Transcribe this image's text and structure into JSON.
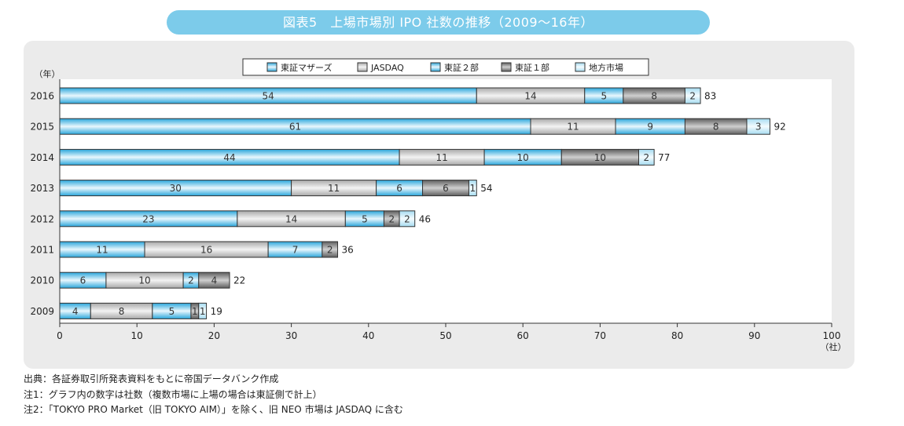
{
  "title": "図表5　上場市場別 IPO 社数の推移（2009～16年）",
  "chart_data": {
    "type": "bar",
    "orientation": "horizontal",
    "stacked": true,
    "y_unit_label": "（年）",
    "x_unit_label": "（社）",
    "categories": [
      "2016",
      "2015",
      "2014",
      "2013",
      "2012",
      "2011",
      "2010",
      "2009"
    ],
    "xlim": [
      0,
      100
    ],
    "xticks": [
      0,
      10,
      20,
      30,
      40,
      50,
      60,
      70,
      80,
      90,
      100
    ],
    "series": [
      {
        "name": "東証マザーズ",
        "values": [
          54,
          61,
          44,
          30,
          23,
          11,
          6,
          4
        ]
      },
      {
        "name": "JASDAQ",
        "values": [
          14,
          11,
          11,
          11,
          14,
          16,
          10,
          8
        ]
      },
      {
        "name": "東証２部",
        "values": [
          5,
          9,
          10,
          6,
          5,
          7,
          2,
          5
        ]
      },
      {
        "name": "東証１部",
        "values": [
          8,
          8,
          10,
          6,
          2,
          2,
          4,
          1
        ]
      },
      {
        "name": "地方市場",
        "values": [
          2,
          3,
          2,
          1,
          2,
          0,
          0,
          1
        ]
      }
    ],
    "totals": [
      83,
      92,
      77,
      54,
      46,
      36,
      22,
      19
    ],
    "legend_position": "top"
  },
  "colors": {
    "mothers": "#4dbde6",
    "jasdaq": "#c6c6c6",
    "tosho2": "#3fb2e0",
    "tosho1": "#8a8a8a",
    "local": "#bfe6f5",
    "title_bar": "#7ccbea",
    "panel": "#ebebeb"
  },
  "notes": [
    "出典：各証券取引所発表資料をもとに帝国データバンク作成",
    "注1：グラフ内の数字は社数（複数市場に上場の場合は東証側で計上）",
    "注2：「TOKYO PRO Market（旧 TOKYO AIM）」を除く、旧 NEO 市場は JASDAQ に含む"
  ]
}
